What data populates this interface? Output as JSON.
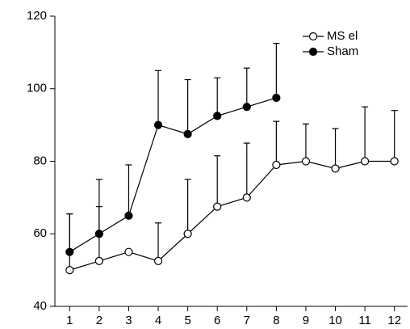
{
  "chart_data": {
    "type": "line",
    "x": [
      1,
      2,
      3,
      4,
      5,
      6,
      7,
      8,
      9,
      10,
      11,
      12
    ],
    "xlim": [
      0.5,
      12.5
    ],
    "xticks": [
      1,
      2,
      3,
      4,
      5,
      6,
      7,
      8,
      9,
      10,
      11,
      12
    ],
    "ylim": [
      40,
      120
    ],
    "yticks": [
      40,
      60,
      80,
      100,
      120
    ],
    "legend": "top-right",
    "series": [
      {
        "name": "MS el",
        "color": "#000000",
        "marker": "open",
        "values": [
          50,
          52.5,
          55,
          52.5,
          60,
          67.5,
          70,
          79,
          80,
          78,
          80,
          80
        ],
        "errors": [
          15.5,
          15,
          null,
          10.5,
          15,
          14,
          15,
          12,
          10.3,
          11,
          15,
          14
        ]
      },
      {
        "name": "Sham",
        "color": "#000000",
        "marker": "filled",
        "values": [
          55,
          60,
          65,
          90,
          87.5,
          92.5,
          95,
          97.5,
          null,
          null,
          null,
          null
        ],
        "errors": [
          10.5,
          15,
          14,
          15,
          15,
          10.5,
          10.7,
          15,
          null,
          null,
          null,
          null
        ]
      }
    ]
  }
}
